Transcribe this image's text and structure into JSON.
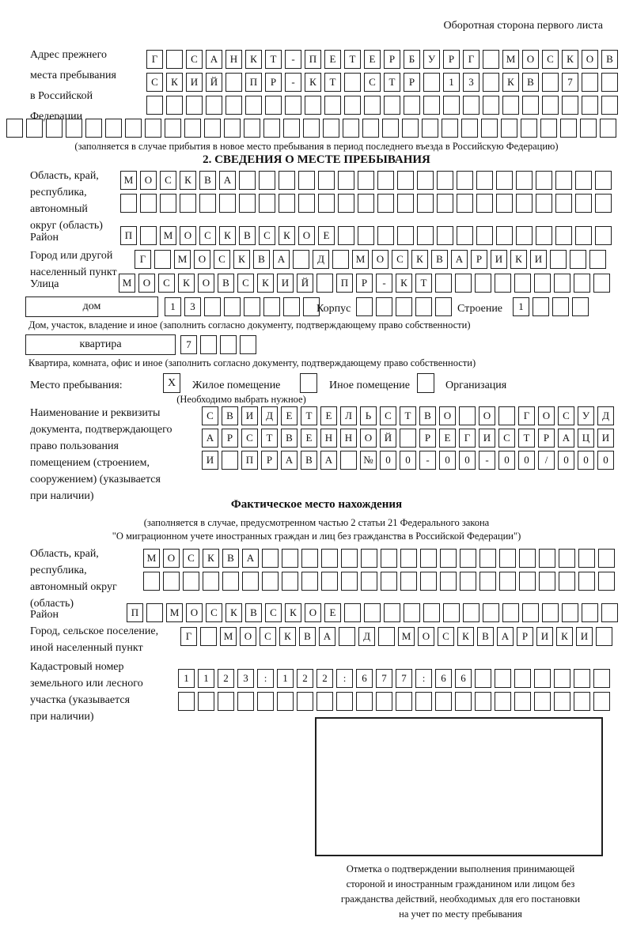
{
  "header_note": "Оборотная сторона первого листа",
  "prev_address": {
    "label": "Адрес прежнего\nместа пребывания\nв Российской\nФедерации",
    "rows": [
      {
        "text": "Г САНКТ-ПЕТЕРБУРГ МОСКОВ",
        "len": 24
      },
      {
        "text": "СКИЙ ПР-КТ СТР 13 КВ 7",
        "len": 24
      },
      {
        "text": "",
        "len": 24
      },
      {
        "text": "",
        "len": 31
      }
    ],
    "caption": "(заполняется в случае прибытия в новое место пребывания в период последнего въезда в Российскую Федерацию)"
  },
  "section2": {
    "title": "2. СВЕДЕНИЯ О МЕСТЕ ПРЕБЫВАНИЯ",
    "oblast": {
      "label": "Область, край,\nреспублика,\nавтономный\nокруг (область)",
      "rows": [
        {
          "text": "МОСКВА",
          "len": 25
        },
        {
          "text": "",
          "len": 25
        }
      ]
    },
    "rayon": {
      "label": "Район",
      "row": {
        "text": "П МОСКВСКОЕ",
        "len": 25
      }
    },
    "gorod": {
      "label": "Город или другой\nнаселенный пункт",
      "row": {
        "text": "Г МОСКВА Д МОСКВАРИКИ",
        "len": 24
      }
    },
    "ulitsa": {
      "label": "Улица",
      "row": {
        "text": "МОСКОВСКИЙ ПР-КТ",
        "len": 25
      }
    },
    "dom": {
      "box_label": "дом",
      "number": {
        "text": "13",
        "len": 8
      },
      "korpus_label": "Корпус",
      "korpus": {
        "text": "",
        "len": 5
      },
      "stroenie_label": "Строение",
      "stroenie": {
        "text": "1",
        "len": 4
      }
    },
    "dom_caption": "Дом, участок, владение и иное (заполнить согласно документу, подтверждающему право собственности)",
    "kvartira": {
      "box_label": "квартира",
      "cells": {
        "text": "7",
        "len": 4
      }
    },
    "kvartira_caption": "Квартира, комната, офис и иное (заполнить согласно документу, подтверждающему право собственности)",
    "mesto": {
      "label": "Место пребывания:",
      "options": [
        {
          "mark": "X",
          "label": "Жилое помещение"
        },
        {
          "mark": "",
          "label": "Иное помещение"
        },
        {
          "mark": "",
          "label": "Организация"
        }
      ],
      "caption": "(Необходимо выбрать нужное)"
    },
    "doc": {
      "label": "Наименование и реквизиты\nдокумента, подтверждающего\nправо пользования\nпомещением (строением,\nсооружением) (указывается\nпри наличии)",
      "rows": [
        {
          "text": "СВИДЕТЕЛЬСТВО О ГОСУД",
          "len": 21
        },
        {
          "text": "АРСТВЕННОЙ РЕГИСТРАЦИ",
          "len": 21
        },
        {
          "text": "И ПРАВА №00-00-00/000",
          "len": 21
        }
      ]
    }
  },
  "fact": {
    "title": "Фактическое место нахождения",
    "caption": "(заполняется в случае, предусмотренном частью 2 статьи 21 Федерального закона\n\"О миграционном учете иностранных граждан и лиц без гражданства в Российской Федерации\")",
    "oblast": {
      "label": "Область, край,\nреспублика,\nавтономный округ\n(область)",
      "rows": [
        {
          "text": "МОСКВА",
          "len": 24
        },
        {
          "text": "",
          "len": 24
        }
      ]
    },
    "rayon": {
      "label": "Район",
      "row": {
        "text": "П МОСКВСКОЕ",
        "len": 25
      }
    },
    "gorod": {
      "label": "Город, сельское поселение,\nиной населенный пункт",
      "row": {
        "text": "Г МОСКВА Д МОСКВАРИКИ",
        "len": 22
      }
    },
    "kadastr": {
      "label": "Кадастровый номер\nземельного или лесного\nучастка (указывается\nпри наличии)",
      "rows": [
        {
          "text": "1123:122:677:66",
          "len": 22
        },
        {
          "text": "",
          "len": 22
        }
      ]
    },
    "stamp_caption": "Отметка о подтверждении выполнения принимающей\nстороной и иностранным гражданином или лицом без\nгражданства действий, необходимых для его постановки\nна учет по месту пребывания"
  }
}
